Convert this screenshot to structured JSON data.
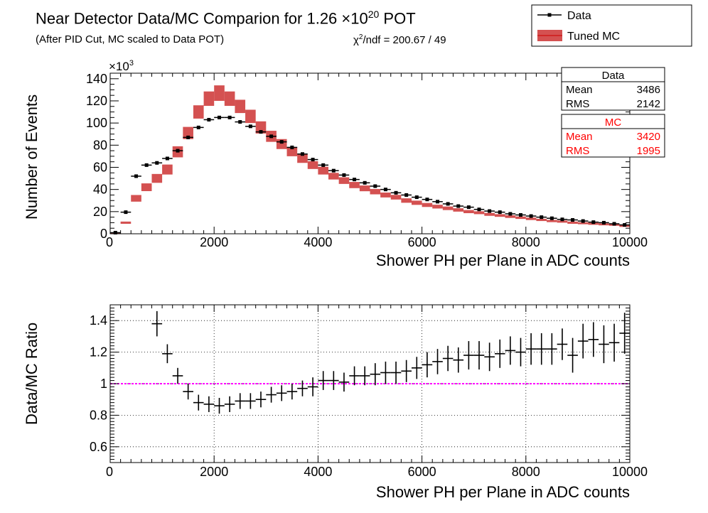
{
  "title": {
    "main": "Near Detector Data/MC Comparion for 1.26 ×10",
    "exponent": "20",
    "suffix": " POT"
  },
  "subtitle": "(After PID Cut, MC scaled to Data POT)",
  "chi2": {
    "symbol": "χ",
    "sup": "2",
    "text": "/ndf = 200.67 / 49"
  },
  "legend": {
    "entries": [
      {
        "label": "Data",
        "style": "marker-line",
        "color": "#000000"
      },
      {
        "label": "Tuned MC",
        "style": "band",
        "color": "#cc3333"
      }
    ]
  },
  "stats": {
    "data": {
      "title": "Data",
      "rows": [
        {
          "label": "Mean",
          "value": "3486"
        },
        {
          "label": "RMS",
          "value": "2142"
        }
      ],
      "color": "#000000"
    },
    "mc": {
      "title": "MC",
      "rows": [
        {
          "label": "Mean",
          "value": "3420"
        },
        {
          "label": "RMS",
          "value": "1995"
        }
      ],
      "color": "#ff0000"
    }
  },
  "chart_data": [
    {
      "type": "histogram",
      "xlabel": "Shower PH per Plane in ADC counts",
      "ylabel": "Number of Events",
      "y_multiplier": "×10",
      "y_multiplier_exp": "3",
      "xlim": [
        0,
        10000
      ],
      "ylim": [
        0,
        145
      ],
      "xticks": [
        0,
        2000,
        4000,
        6000,
        8000,
        10000
      ],
      "yticks": [
        0,
        20,
        40,
        60,
        80,
        100,
        120,
        140
      ],
      "grid": false,
      "bin_width": 200,
      "x": [
        100,
        300,
        500,
        700,
        900,
        1100,
        1300,
        1500,
        1700,
        1900,
        2100,
        2300,
        2500,
        2700,
        2900,
        3100,
        3300,
        3500,
        3700,
        3900,
        4100,
        4300,
        4500,
        4700,
        4900,
        5100,
        5300,
        5500,
        5700,
        5900,
        6100,
        6300,
        6500,
        6700,
        6900,
        7100,
        7300,
        7500,
        7700,
        7900,
        8100,
        8300,
        8500,
        8700,
        8900,
        9100,
        9300,
        9500,
        9700,
        9900
      ],
      "series": [
        {
          "name": "Data",
          "color": "#000000",
          "values": [
            1,
            19.5,
            52,
            62,
            64,
            68,
            75,
            87,
            96,
            103,
            105,
            105,
            101,
            97,
            92,
            88,
            83,
            78,
            72,
            67,
            62,
            57,
            53,
            49,
            46,
            43,
            40,
            37,
            35,
            33,
            31,
            29,
            27,
            25,
            24,
            22,
            20.5,
            19.5,
            18,
            17,
            16,
            15,
            14,
            13,
            12.5,
            11.5,
            10.5,
            10,
            9,
            8
          ]
        },
        {
          "name": "Tuned MC",
          "color": "#cc3333",
          "values": [
            0.5,
            10,
            32,
            42,
            50,
            58,
            74,
            91,
            110,
            122,
            127,
            122,
            115,
            106,
            96,
            88,
            81,
            74,
            68,
            62,
            57,
            52,
            48,
            44,
            41,
            38,
            35,
            33,
            30,
            28,
            26,
            24.5,
            23,
            21.5,
            20,
            19,
            17.5,
            16.5,
            15.5,
            14.5,
            13.5,
            12.5,
            11.5,
            11,
            10,
            9.5,
            9,
            8.5,
            8,
            7
          ],
          "errors": [
            0.5,
            1,
            3,
            3.5,
            4,
            4.5,
            5,
            5.5,
            6,
            6.5,
            7,
            6.5,
            6,
            6,
            5.5,
            5,
            4.5,
            4,
            4,
            3.5,
            3.5,
            3,
            3,
            2.8,
            2.6,
            2.4,
            2.2,
            2.1,
            2,
            1.9,
            1.8,
            1.7,
            1.6,
            1.5,
            1.4,
            1.3,
            1.3,
            1.2,
            1.2,
            1.1,
            1.1,
            1,
            1,
            1,
            1,
            0.9,
            0.9,
            0.9,
            0.8,
            0.8
          ]
        }
      ]
    },
    {
      "type": "scatter",
      "xlabel": "Shower PH per Plane in ADC counts",
      "ylabel": "Data/MC Ratio",
      "xlim": [
        0,
        10000
      ],
      "ylim": [
        0.5,
        1.5
      ],
      "xticks": [
        0,
        2000,
        4000,
        6000,
        8000,
        10000
      ],
      "yticks": [
        0.6,
        0.8,
        1,
        1.2,
        1.4
      ],
      "grid": true,
      "reference_line": {
        "y": 1,
        "color": "#ff00ff"
      },
      "bin_width": 200,
      "x": [
        900,
        1100,
        1300,
        1500,
        1700,
        1900,
        2100,
        2300,
        2500,
        2700,
        2900,
        3100,
        3300,
        3500,
        3700,
        3900,
        4100,
        4300,
        4500,
        4700,
        4900,
        5100,
        5300,
        5500,
        5700,
        5900,
        6100,
        6300,
        6500,
        6700,
        6900,
        7100,
        7300,
        7500,
        7700,
        7900,
        8100,
        8300,
        8500,
        8700,
        8900,
        9100,
        9300,
        9500,
        9700,
        9900
      ],
      "values": [
        1.38,
        1.19,
        1.05,
        0.95,
        0.88,
        0.87,
        0.86,
        0.87,
        0.89,
        0.89,
        0.9,
        0.93,
        0.94,
        0.95,
        0.97,
        0.98,
        1.02,
        1.02,
        1.01,
        1.05,
        1.05,
        1.06,
        1.07,
        1.07,
        1.08,
        1.1,
        1.12,
        1.14,
        1.16,
        1.15,
        1.18,
        1.18,
        1.17,
        1.19,
        1.21,
        1.2,
        1.22,
        1.22,
        1.22,
        1.25,
        1.18,
        1.27,
        1.28,
        1.25,
        1.26,
        1.32
      ],
      "errors": [
        0.08,
        0.06,
        0.05,
        0.05,
        0.05,
        0.05,
        0.05,
        0.05,
        0.05,
        0.05,
        0.05,
        0.05,
        0.05,
        0.05,
        0.05,
        0.06,
        0.06,
        0.06,
        0.06,
        0.06,
        0.06,
        0.07,
        0.07,
        0.07,
        0.07,
        0.07,
        0.08,
        0.08,
        0.08,
        0.08,
        0.09,
        0.09,
        0.09,
        0.09,
        0.09,
        0.09,
        0.1,
        0.1,
        0.1,
        0.1,
        0.11,
        0.11,
        0.11,
        0.12,
        0.12,
        0.13
      ]
    }
  ]
}
